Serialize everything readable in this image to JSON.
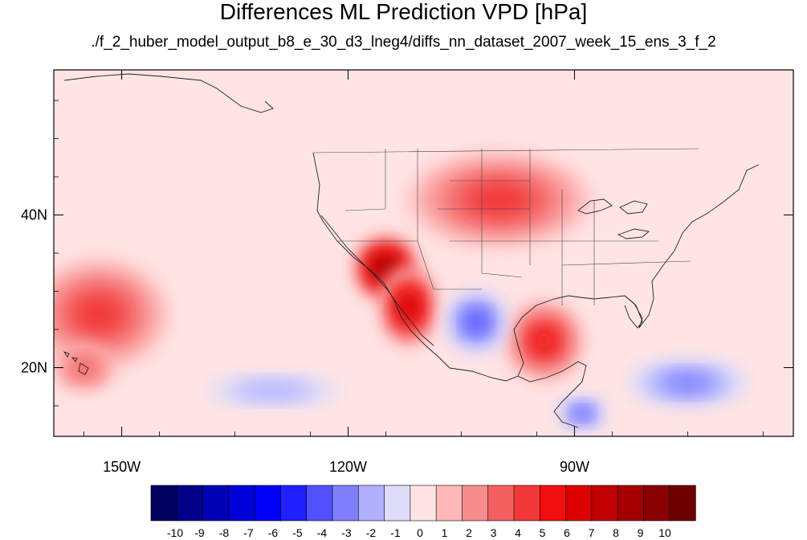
{
  "title": "Differences ML Prediction VPD [hPa]",
  "subtitle": "./f_2_huber_model_output_b8_e_30_d3_lneg4/diffs_nn_dataset_2007_week_15_ens_3_f_2",
  "chart_data": {
    "type": "heatmap",
    "title": "Differences ML Prediction VPD [hPa]",
    "subtitle": "./f_2_huber_model_output_b8_e_30_d3_lneg4/diffs_nn_dataset_2007_week_15_ens_3_f_2",
    "x_range": [
      -159,
      -61
    ],
    "y_range": [
      11,
      59
    ],
    "x_ticks": [
      {
        "lon": -150,
        "label": "150W"
      },
      {
        "lon": -120,
        "label": "120W"
      },
      {
        "lon": -90,
        "label": "90W"
      }
    ],
    "y_ticks": [
      {
        "lat": 40,
        "label": "40N"
      },
      {
        "lat": 20,
        "label": "20N"
      }
    ],
    "colorbar": {
      "labels": [
        "-10",
        "-9",
        "-8",
        "-7",
        "-6",
        "-5",
        "-4",
        "-3",
        "-2",
        "-1",
        "0",
        "1",
        "2",
        "3",
        "4",
        "5",
        "6",
        "7",
        "8",
        "9",
        "10"
      ],
      "colors": [
        "#00005e",
        "#000088",
        "#0000b4",
        "#0000d8",
        "#0000f8",
        "#2020ff",
        "#5050ff",
        "#8080ff",
        "#b0b0ff",
        "#dedefa",
        "#ffe4e4",
        "#fdb8b8",
        "#f88c8c",
        "#f46060",
        "#f23838",
        "#f20e0e",
        "#dc0000",
        "#c00000",
        "#a40000",
        "#880000",
        "#6e0000"
      ]
    },
    "anomalies": [
      {
        "name": "pacific-warm",
        "lon": -153,
        "lat": 27,
        "value": 3.5,
        "rx": 9,
        "ry": 7
      },
      {
        "name": "hawaii-warm",
        "lon": -155,
        "lat": 20,
        "value": 3,
        "rx": 4,
        "ry": 3
      },
      {
        "name": "southwest-warm",
        "lon": -115,
        "lat": 33,
        "value": 9,
        "rx": 4,
        "ry": 4
      },
      {
        "name": "baja-warm",
        "lon": -112,
        "lat": 28,
        "value": 7,
        "rx": 3.5,
        "ry": 5
      },
      {
        "name": "gulf-warm",
        "lon": -94,
        "lat": 23.5,
        "value": 5,
        "rx": 5,
        "ry": 5
      },
      {
        "name": "plains-warm",
        "lon": -100,
        "lat": 42,
        "value": 3.5,
        "rx": 12,
        "ry": 6
      },
      {
        "name": "mexico-cool",
        "lon": -103,
        "lat": 26,
        "value": -4,
        "rx": 4,
        "ry": 4
      },
      {
        "name": "central-america-cool",
        "lon": -89,
        "lat": 14,
        "value": -4,
        "rx": 3,
        "ry": 2
      },
      {
        "name": "caribbean-cool",
        "lon": -75,
        "lat": 18,
        "value": -2.5,
        "rx": 8,
        "ry": 3
      },
      {
        "name": "east-pacific-cool",
        "lon": -130,
        "lat": 17,
        "value": -1.5,
        "rx": 9,
        "ry": 2
      }
    ]
  }
}
